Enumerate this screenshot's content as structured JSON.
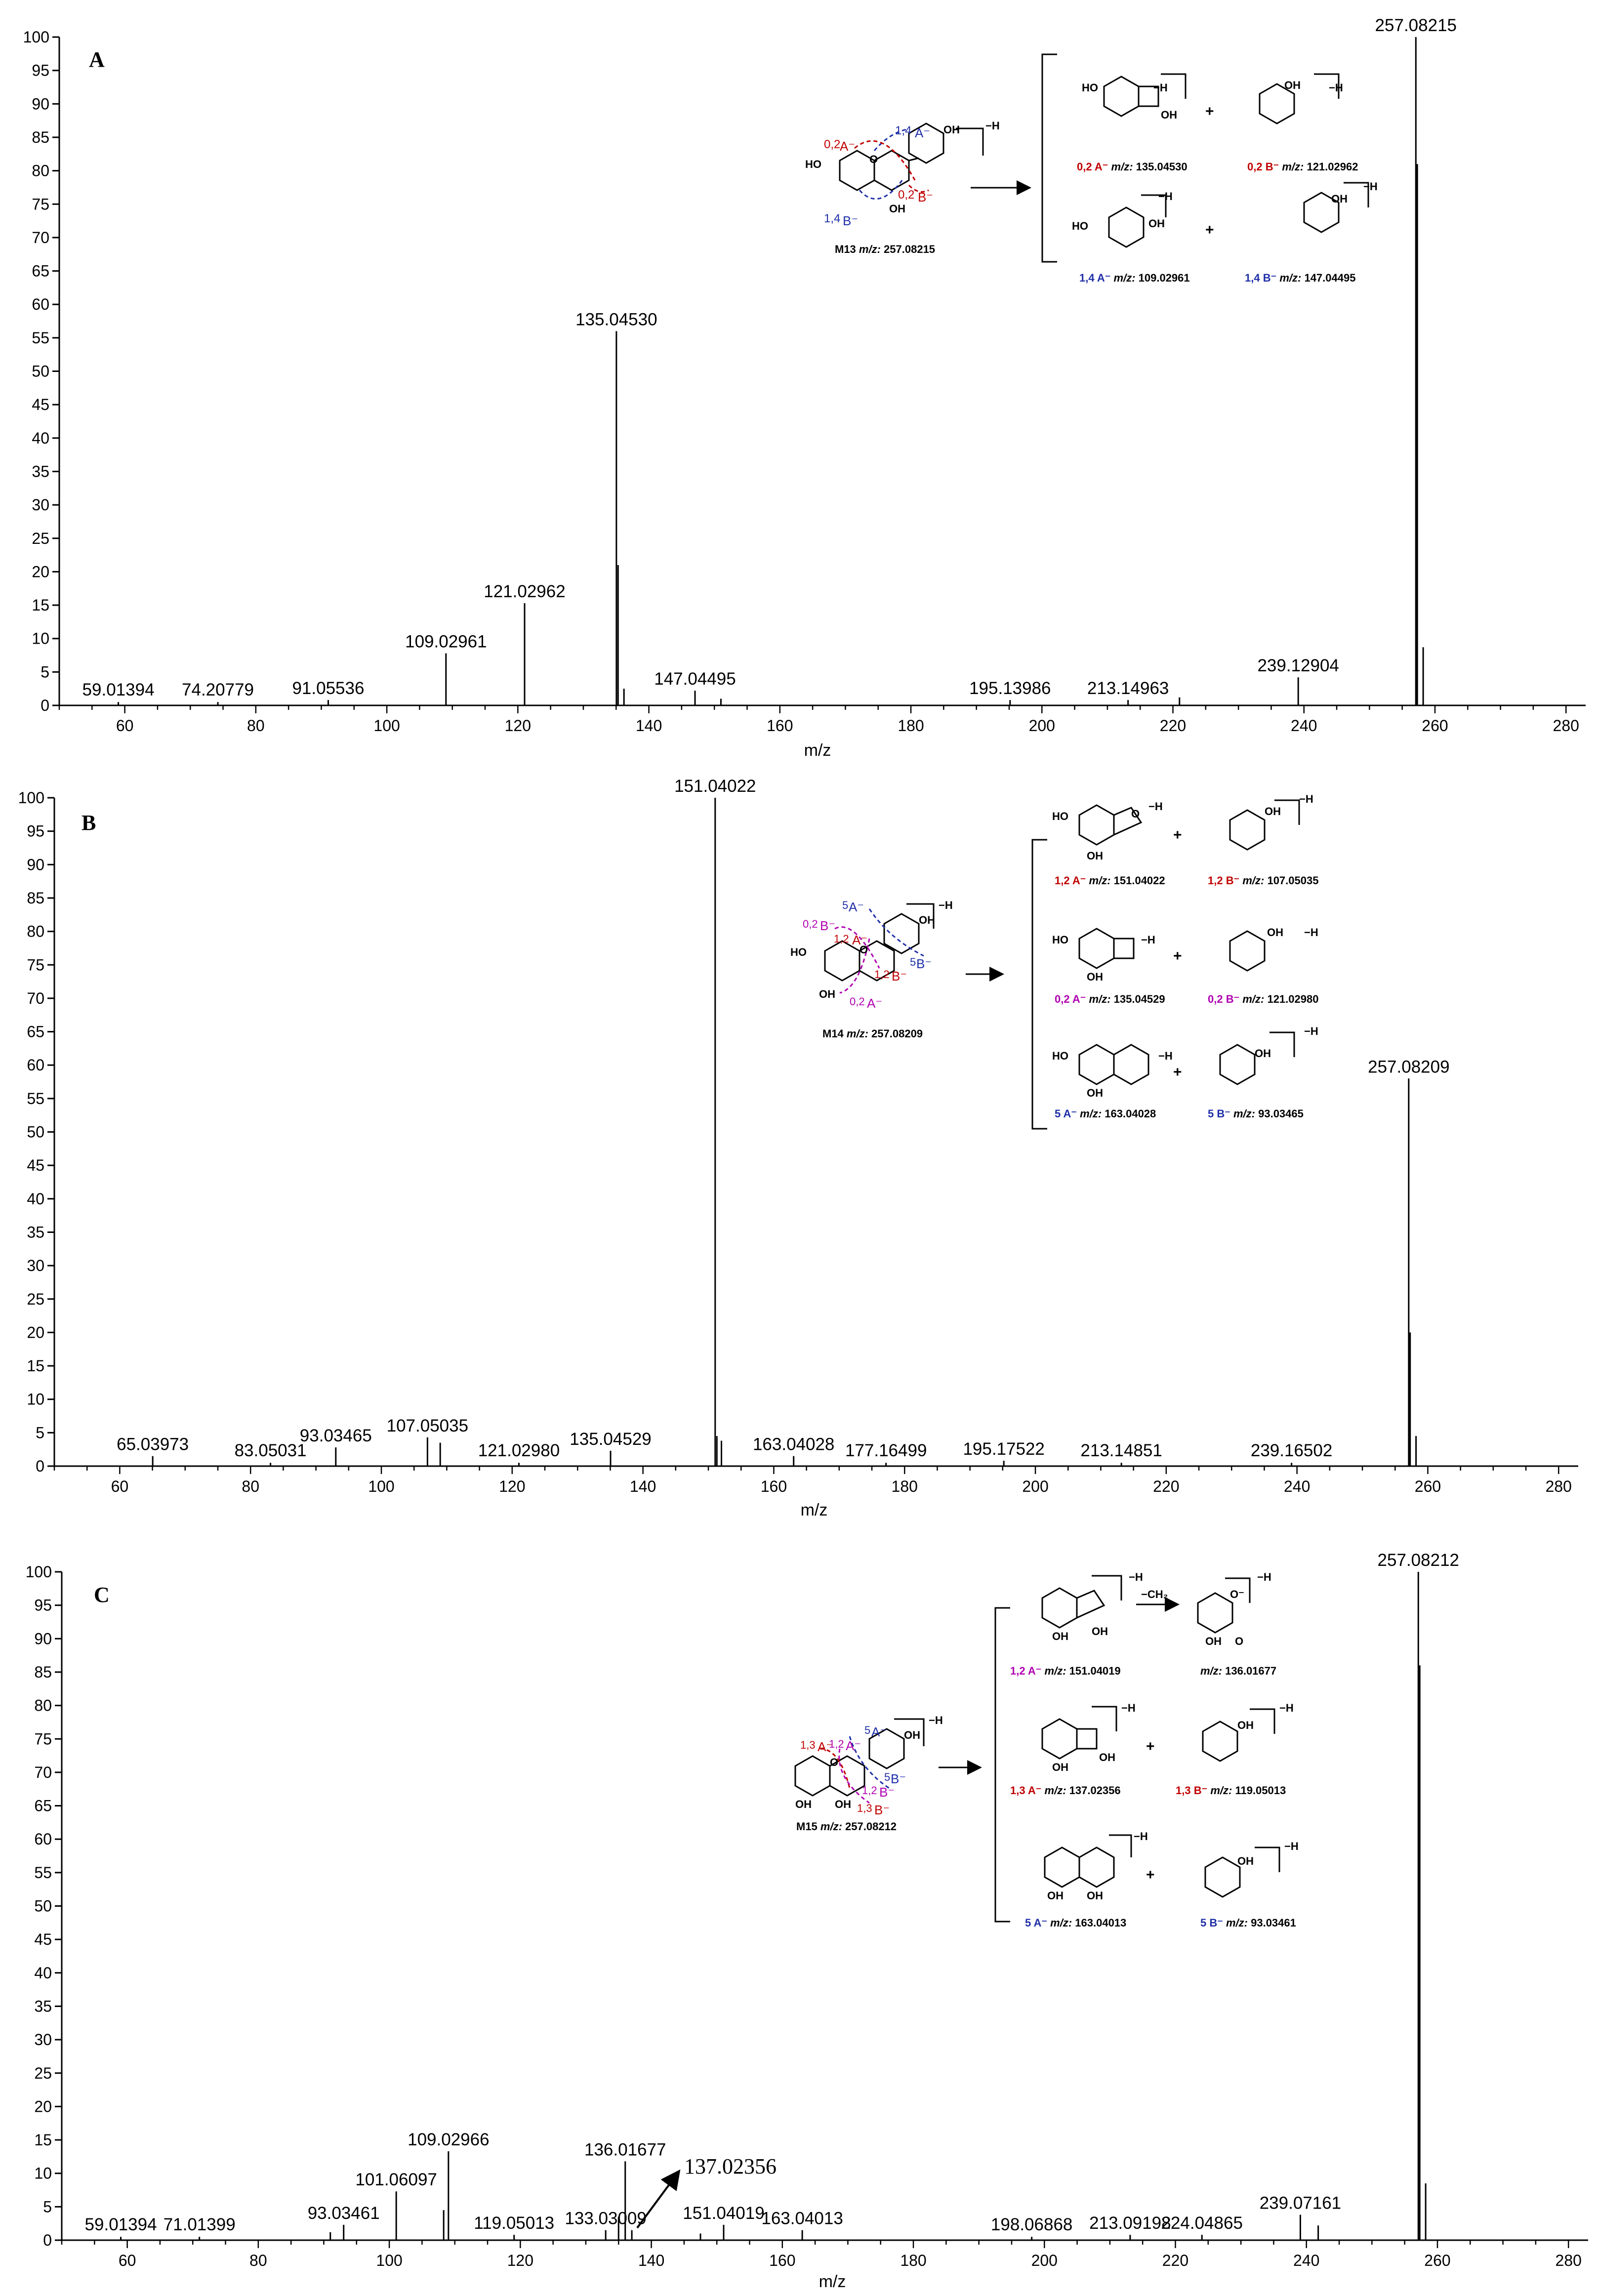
{
  "chart_data": [
    {
      "type": "bar",
      "panel_label": "A",
      "xlabel": "m/z",
      "ylabel": "",
      "xlim": [
        50,
        283
      ],
      "ylim": [
        0,
        100
      ],
      "x_ticks": [
        60,
        80,
        100,
        120,
        140,
        160,
        180,
        200,
        220,
        240,
        260,
        280
      ],
      "y_ticks": [
        0,
        5,
        10,
        15,
        20,
        25,
        30,
        35,
        40,
        45,
        50,
        55,
        60,
        65,
        70,
        75,
        80,
        85,
        90,
        95,
        100
      ],
      "peaks": [
        {
          "x": 59.01394,
          "y": 0.5,
          "label": "59.01394"
        },
        {
          "x": 74.20779,
          "y": 0.5,
          "label": "74.20779"
        },
        {
          "x": 91.05536,
          "y": 0.8,
          "label": "91.05536"
        },
        {
          "x": 109.02961,
          "y": 7.8,
          "label": "109.02961"
        },
        {
          "x": 121.02962,
          "y": 15.3,
          "label": "121.02962"
        },
        {
          "x": 135.0453,
          "y": 56,
          "label": "135.04530"
        },
        {
          "x": 135.3,
          "y": 21
        },
        {
          "x": 136.2,
          "y": 2.5
        },
        {
          "x": 147.04495,
          "y": 2.2,
          "label": "147.04495"
        },
        {
          "x": 151.0,
          "y": 1
        },
        {
          "x": 195.13986,
          "y": 0.8,
          "label": "195.13986"
        },
        {
          "x": 213.14963,
          "y": 0.8,
          "label": "213.14963"
        },
        {
          "x": 221.0,
          "y": 1.2
        },
        {
          "x": 239.12904,
          "y": 4.2,
          "label": "239.12904"
        },
        {
          "x": 257.08215,
          "y": 100,
          "label": "257.08215"
        },
        {
          "x": 257.3,
          "y": 81
        },
        {
          "x": 258.2,
          "y": 8.7
        }
      ],
      "scheme": {
        "precursor": "M13",
        "precursor_mz": "257.08215",
        "products": [
          {
            "name": "0,2 A⁻",
            "mz": "135.04530"
          },
          {
            "name": "0,2 B⁻",
            "mz": "121.02962"
          },
          {
            "name": "1,4 A⁻",
            "mz": "109.02961"
          },
          {
            "name": "1,4 B⁻",
            "mz": "147.04495"
          }
        ]
      }
    },
    {
      "type": "bar",
      "panel_label": "B",
      "xlabel": "m/z",
      "ylabel": "",
      "xlim": [
        50,
        283
      ],
      "ylim": [
        0,
        100
      ],
      "x_ticks": [
        60,
        80,
        100,
        120,
        140,
        160,
        180,
        200,
        220,
        240,
        260,
        280
      ],
      "y_ticks": [
        0,
        5,
        10,
        15,
        20,
        25,
        30,
        35,
        40,
        45,
        50,
        55,
        60,
        65,
        70,
        75,
        80,
        85,
        90,
        95,
        100
      ],
      "peaks": [
        {
          "x": 65.03973,
          "y": 1.5,
          "label": "65.03973"
        },
        {
          "x": 83.05031,
          "y": 0.5,
          "label": "83.05031"
        },
        {
          "x": 93.03465,
          "y": 2.8,
          "label": "93.03465"
        },
        {
          "x": 107.05035,
          "y": 4.3,
          "label": "107.05035"
        },
        {
          "x": 109.0,
          "y": 3.5
        },
        {
          "x": 121.0298,
          "y": 0.5,
          "label": "121.02980"
        },
        {
          "x": 135.04529,
          "y": 2.3,
          "label": "135.04529"
        },
        {
          "x": 151.04022,
          "y": 100,
          "label": "151.04022"
        },
        {
          "x": 151.3,
          "y": 4.5
        },
        {
          "x": 152.0,
          "y": 3.8
        },
        {
          "x": 163.04028,
          "y": 1.5,
          "label": "163.04028"
        },
        {
          "x": 177.16499,
          "y": 0.5,
          "label": "177.16499"
        },
        {
          "x": 195.17522,
          "y": 0.8,
          "label": "195.17522"
        },
        {
          "x": 213.14851,
          "y": 0.5,
          "label": "213.14851"
        },
        {
          "x": 239.16502,
          "y": 0.5,
          "label": "239.16502"
        },
        {
          "x": 257.08209,
          "y": 58,
          "label": "257.08209"
        },
        {
          "x": 257.3,
          "y": 20
        },
        {
          "x": 258.2,
          "y": 4.5
        }
      ],
      "scheme": {
        "precursor": "M14",
        "precursor_mz": "257.08209",
        "products": [
          {
            "name": "1,2 A⁻",
            "mz": "151.04022"
          },
          {
            "name": "1,2 B⁻",
            "mz": "107.05035"
          },
          {
            "name": "0,2 A⁻",
            "mz": "135.04529"
          },
          {
            "name": "0,2 B⁻",
            "mz": "121.02980"
          },
          {
            "name": "5 A⁻",
            "mz": "163.04028"
          },
          {
            "name": "5 B⁻",
            "mz": "93.03465"
          }
        ]
      }
    },
    {
      "type": "bar",
      "panel_label": "C",
      "xlabel": "m/z",
      "ylabel": "",
      "xlim": [
        50,
        283
      ],
      "ylim": [
        0,
        100
      ],
      "x_ticks": [
        60,
        80,
        100,
        120,
        140,
        160,
        180,
        200,
        220,
        240,
        260,
        280
      ],
      "y_ticks": [
        0,
        5,
        10,
        15,
        20,
        25,
        30,
        35,
        40,
        45,
        50,
        55,
        60,
        65,
        70,
        75,
        80,
        85,
        90,
        95,
        100
      ],
      "peaks": [
        {
          "x": 59.01394,
          "y": 0.5,
          "label": "59.01394"
        },
        {
          "x": 71.01399,
          "y": 0.5,
          "label": "71.01399"
        },
        {
          "x": 91.0,
          "y": 1.2
        },
        {
          "x": 93.03461,
          "y": 2.3,
          "label": "93.03461"
        },
        {
          "x": 101.06097,
          "y": 7.3,
          "label": "101.06097"
        },
        {
          "x": 108.3,
          "y": 4.5
        },
        {
          "x": 109.02966,
          "y": 13.3,
          "label": "109.02966"
        },
        {
          "x": 119.05013,
          "y": 0.8,
          "label": "119.05013"
        },
        {
          "x": 133.03009,
          "y": 1.5,
          "label": "133.03009"
        },
        {
          "x": 135.0,
          "y": 3.5
        },
        {
          "x": 136.01677,
          "y": 11.8,
          "label": "136.01677"
        },
        {
          "x": 137.02356,
          "y": 1.5,
          "label": "137.02356"
        },
        {
          "x": 147.5,
          "y": 1
        },
        {
          "x": 151.04019,
          "y": 2.3,
          "label": "151.04019"
        },
        {
          "x": 163.04013,
          "y": 1.5,
          "label": "163.04013"
        },
        {
          "x": 198.06868,
          "y": 0.5,
          "label": "198.06868"
        },
        {
          "x": 213.09198,
          "y": 0.8,
          "label": "213.09198"
        },
        {
          "x": 224.04865,
          "y": 0.8,
          "label": "224.04865"
        },
        {
          "x": 239.07161,
          "y": 3.8,
          "label": "239.07161"
        },
        {
          "x": 241.8,
          "y": 2.2
        },
        {
          "x": 257.08212,
          "y": 100,
          "label": "257.08212"
        },
        {
          "x": 257.3,
          "y": 86
        },
        {
          "x": 258.2,
          "y": 8.5
        }
      ],
      "scheme": {
        "precursor": "M15",
        "precursor_mz": "257.08212",
        "loss": "−CH₂",
        "products": [
          {
            "name": "1,2 A⁻",
            "mz": "151.04019"
          },
          {
            "name": "",
            "mz": "136.01677"
          },
          {
            "name": "1,3 A⁻",
            "mz": "137.02356"
          },
          {
            "name": "1,3 B⁻",
            "mz": "119.05013"
          },
          {
            "name": "5 A⁻",
            "mz": "163.04013"
          },
          {
            "name": "5 B⁻",
            "mz": "93.03461"
          }
        ]
      }
    }
  ],
  "colors": {
    "axis": "#000000",
    "red": "#c00000",
    "blue": "#1f2fa8",
    "magenta": "#b000b0",
    "green": "#2e8b57"
  },
  "labels": {
    "mz_prefix": "m/z:",
    "minus_h": "−H",
    "plus": "+",
    "arrow_label": "137.02356"
  }
}
